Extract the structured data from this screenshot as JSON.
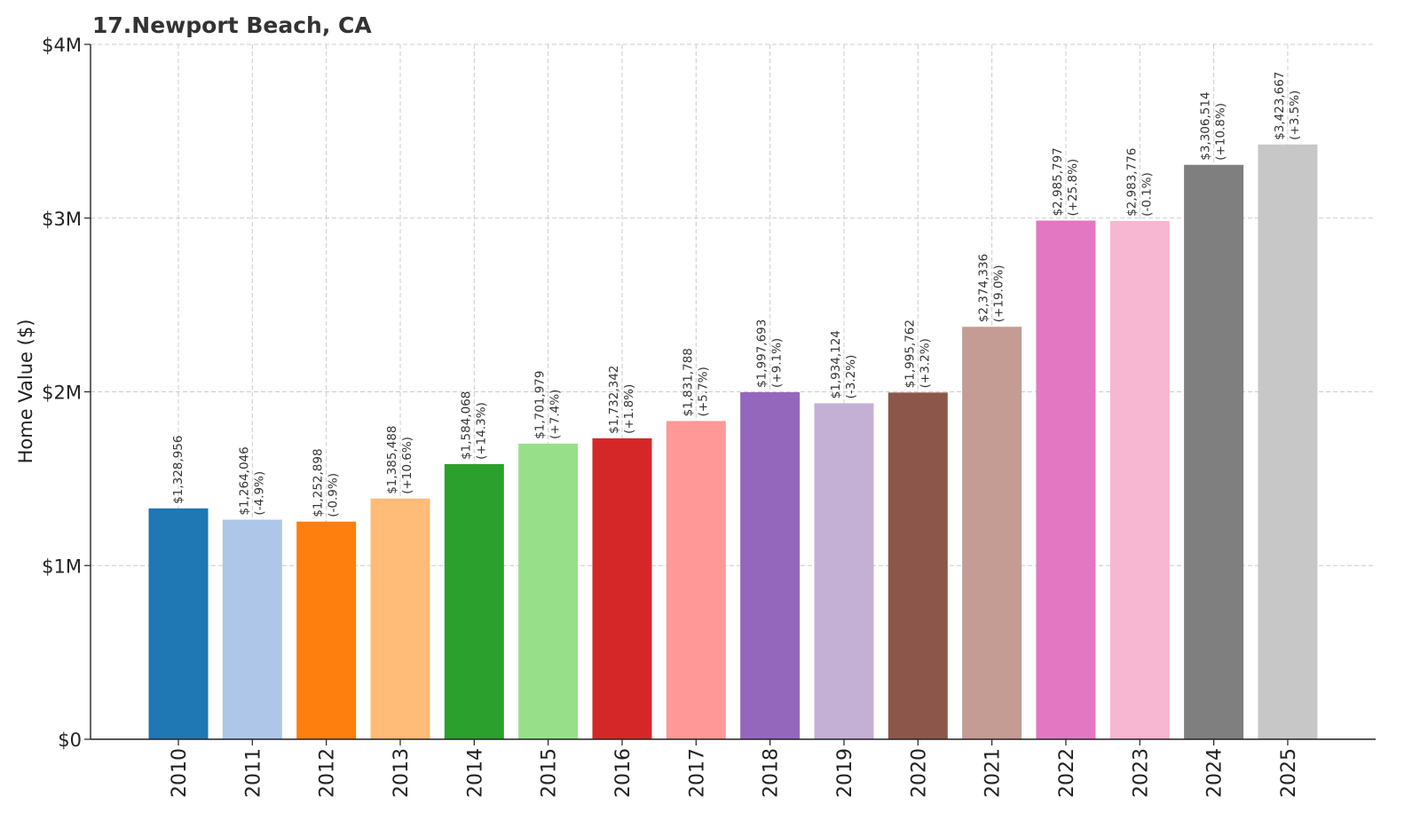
{
  "chart_data": {
    "type": "bar",
    "title": "17.Newport Beach, CA",
    "xlabel": "",
    "ylabel": "Home Value ($)",
    "ylim": [
      0,
      4000000
    ],
    "yticks": [
      {
        "value": 0,
        "label": "$0"
      },
      {
        "value": 1000000,
        "label": "$1M"
      },
      {
        "value": 2000000,
        "label": "$2M"
      },
      {
        "value": 3000000,
        "label": "$3M"
      },
      {
        "value": 4000000,
        "label": "$4M"
      }
    ],
    "grid": true,
    "categories": [
      "2010",
      "2011",
      "2012",
      "2013",
      "2014",
      "2015",
      "2016",
      "2017",
      "2018",
      "2019",
      "2020",
      "2021",
      "2022",
      "2023",
      "2024",
      "2025"
    ],
    "values": [
      1328956,
      1264046,
      1252898,
      1385488,
      1584068,
      1701979,
      1732342,
      1831788,
      1997693,
      1934124,
      1995762,
      2374336,
      2985797,
      2983776,
      3306514,
      3423667
    ],
    "value_labels": [
      "$1,328,956",
      "$1,264,046",
      "$1,252,898",
      "$1,385,488",
      "$1,584,068",
      "$1,701,979",
      "$1,732,342",
      "$1,831,788",
      "$1,997,693",
      "$1,934,124",
      "$1,995,762",
      "$2,374,336",
      "$2,985,797",
      "$2,983,776",
      "$3,306,514",
      "$3,423,667"
    ],
    "change_labels": [
      "",
      "(-4.9%)",
      "(-0.9%)",
      "(+10.6%)",
      "(+14.3%)",
      "(+7.4%)",
      "(+1.8%)",
      "(+5.7%)",
      "(+9.1%)",
      "(-3.2%)",
      "(+3.2%)",
      "(+19.0%)",
      "(+25.8%)",
      "(-0.1%)",
      "(+10.8%)",
      "(+3.5%)"
    ],
    "colors": [
      "#1f77b4",
      "#aec7e8",
      "#ff7f0e",
      "#ffbb78",
      "#2ca02c",
      "#98df8a",
      "#d62728",
      "#ff9896",
      "#9467bd",
      "#c5b0d5",
      "#8c564b",
      "#c49c94",
      "#e377c2",
      "#f7b6d2",
      "#7f7f7f",
      "#c7c7c7"
    ]
  }
}
